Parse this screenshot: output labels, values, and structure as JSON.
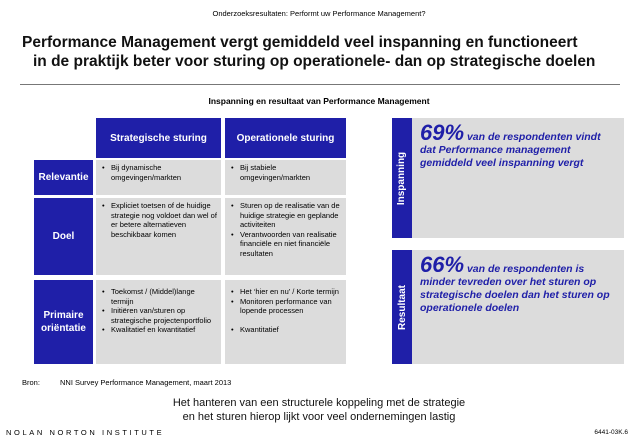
{
  "top_label": "Onderzoeksresultaten: Performt uw Performance Management?",
  "headline": {
    "line1": "Performance Management vergt gemiddeld veel inspanning en functioneert",
    "line2": "in de praktijk beter voor sturing op operationele- dan op strategische doelen"
  },
  "subtitle": "Inspanning en resultaat van Performance Management",
  "table": {
    "col_headers": [
      "Strategische sturing",
      "Operationele sturing"
    ],
    "rows": [
      {
        "label": "Relevantie",
        "strategic": [
          "Bij dynamische omgevingen/markten"
        ],
        "operational": [
          "Bij stabiele omgevingen/markten"
        ]
      },
      {
        "label": "Doel",
        "strategic": [
          "Expliciet toetsen of de huidige strategie nog voldoet dan wel of er betere alternatieven beschikbaar komen"
        ],
        "operational": [
          "Sturen op de realisatie van de huidige strategie en geplande activiteiten",
          "Verantwoorden van realisatie financiële en niet financiële resultaten"
        ]
      },
      {
        "label": "Primaire oriëntatie",
        "strategic": [
          "Toekomst / (Middel)lange termijn",
          "Initiëren van/sturen op strategische projectenportfolio",
          "Kwalitatief en kwantitatief"
        ],
        "operational": [
          "Het ‘hier en nu’ / Korte termijn",
          "Monitoren performance van lopende processen",
          "Kwantitatief"
        ]
      }
    ]
  },
  "stats": [
    {
      "tab": "Inspanning",
      "percent": "69%",
      "text": "van de respondenten vindt dat Performance management gemiddeld veel inspanning vergt"
    },
    {
      "tab": "Resultaat",
      "percent": "66%",
      "text": "van de respondenten is minder tevreden over het sturen op strategische doelen dan het sturen op operationele doelen"
    }
  ],
  "source": {
    "label": "Bron:",
    "text": "NNI Survey Performance Management, maart 2013"
  },
  "conclusion": {
    "line1": "Het hanteren van een structurele koppeling met de strategie",
    "line2": "en het sturen hierop lijkt voor veel ondernemingen lastig"
  },
  "footer": {
    "brand": "NOLAN NORTON INSTITUTE",
    "code": "6441-03K.6"
  },
  "colors": {
    "accent": "#1f1fa8",
    "cell_bg": "#dcdcdc"
  }
}
